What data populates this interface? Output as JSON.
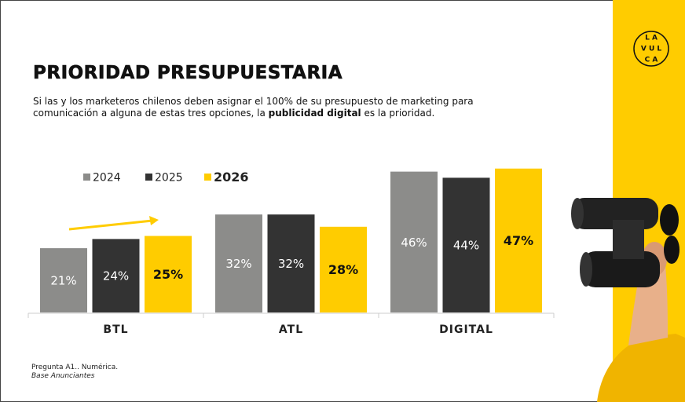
{
  "chart_data": {
    "type": "bar",
    "title": "PRIORIDAD PRESUPUESTARIA",
    "subtitle": [
      "Si las y los marketeros chilenos deben asignar el 100% de su presupuesto de marketing para comunicación a alguna de estas tres opciones, la ",
      "publicidad digital",
      " es la prioridad."
    ],
    "categories": [
      "BTL",
      "ATL",
      "DIGITAL"
    ],
    "series": [
      {
        "name": "2024",
        "color": "#8c8c8a",
        "values": [
          21,
          32,
          46
        ],
        "value_labels": [
          "21%",
          "32%",
          "46%"
        ]
      },
      {
        "name": "2025",
        "color": "#333333",
        "values": [
          24,
          32,
          44
        ],
        "value_labels": [
          "24%",
          "32%",
          "44%"
        ]
      },
      {
        "name": "2026",
        "color": "#ffcc00",
        "values": [
          25,
          28,
          47
        ],
        "value_labels": [
          "25%",
          "28%",
          "47%"
        ]
      }
    ],
    "footnotes": [
      "Pregunta A1.. Numérica.",
      "Base Anunciantes"
    ],
    "logo": [
      "L A",
      "V U L",
      "C A"
    ]
  }
}
